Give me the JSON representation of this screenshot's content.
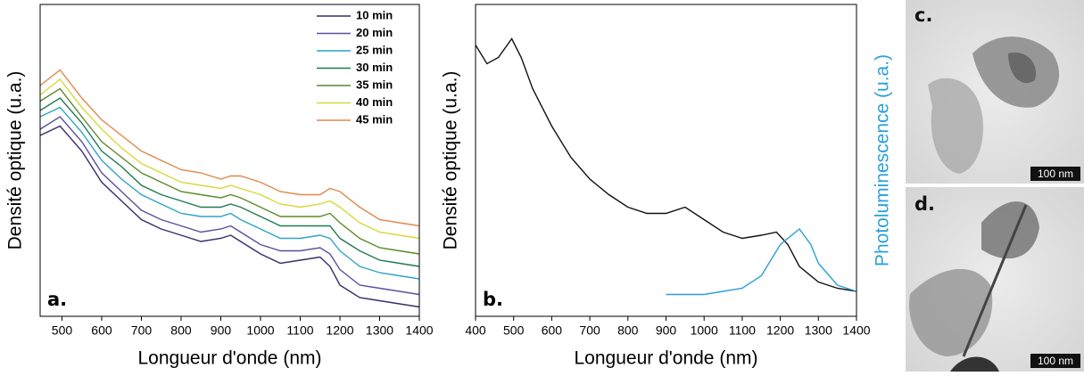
{
  "chart_data": [
    {
      "type": "line",
      "label": "a.",
      "xlabel": "Longueur d'onde (nm)",
      "ylabel": "Densité optique (u.a.)",
      "xlim": [
        445,
        1400
      ],
      "xticks": [
        500,
        600,
        700,
        800,
        900,
        1000,
        1100,
        1200,
        1300,
        1400
      ],
      "ylim": [
        0,
        1
      ],
      "legend": "upper right",
      "x": [
        445,
        495,
        550,
        600,
        650,
        700,
        750,
        800,
        850,
        900,
        925,
        950,
        1000,
        1050,
        1100,
        1150,
        1175,
        1200,
        1250,
        1300,
        1350,
        1400
      ],
      "series": [
        {
          "name": "10 min",
          "color": "#3b2a6b",
          "values": [
            0.58,
            0.61,
            0.53,
            0.43,
            0.37,
            0.31,
            0.28,
            0.26,
            0.24,
            0.25,
            0.26,
            0.24,
            0.2,
            0.17,
            0.18,
            0.19,
            0.16,
            0.1,
            0.06,
            0.05,
            0.04,
            0.03
          ]
        },
        {
          "name": "20 min",
          "color": "#5b4f9e",
          "values": [
            0.6,
            0.64,
            0.56,
            0.46,
            0.4,
            0.34,
            0.31,
            0.29,
            0.27,
            0.28,
            0.29,
            0.27,
            0.23,
            0.21,
            0.21,
            0.22,
            0.2,
            0.15,
            0.1,
            0.09,
            0.08,
            0.07
          ]
        },
        {
          "name": "25 min",
          "color": "#2fa3c7",
          "values": [
            0.64,
            0.67,
            0.59,
            0.5,
            0.44,
            0.39,
            0.36,
            0.33,
            0.32,
            0.32,
            0.33,
            0.31,
            0.28,
            0.25,
            0.25,
            0.26,
            0.25,
            0.21,
            0.16,
            0.14,
            0.13,
            0.12
          ]
        },
        {
          "name": "30 min",
          "color": "#1f7a4f",
          "values": [
            0.66,
            0.7,
            0.62,
            0.53,
            0.48,
            0.42,
            0.39,
            0.37,
            0.35,
            0.35,
            0.36,
            0.35,
            0.32,
            0.29,
            0.29,
            0.29,
            0.29,
            0.25,
            0.21,
            0.18,
            0.17,
            0.16
          ]
        },
        {
          "name": "35 min",
          "color": "#5a8a2a",
          "values": [
            0.69,
            0.73,
            0.64,
            0.56,
            0.51,
            0.46,
            0.43,
            0.4,
            0.39,
            0.38,
            0.39,
            0.38,
            0.35,
            0.32,
            0.32,
            0.32,
            0.33,
            0.3,
            0.25,
            0.22,
            0.21,
            0.2
          ]
        },
        {
          "name": "40 min",
          "color": "#d8d83a",
          "values": [
            0.71,
            0.76,
            0.67,
            0.6,
            0.54,
            0.49,
            0.46,
            0.43,
            0.42,
            0.41,
            0.42,
            0.41,
            0.39,
            0.36,
            0.35,
            0.36,
            0.37,
            0.35,
            0.3,
            0.27,
            0.26,
            0.25
          ]
        },
        {
          "name": "45 min",
          "color": "#e0884a",
          "values": [
            0.74,
            0.79,
            0.7,
            0.63,
            0.58,
            0.53,
            0.5,
            0.47,
            0.46,
            0.44,
            0.45,
            0.45,
            0.43,
            0.4,
            0.39,
            0.39,
            0.41,
            0.4,
            0.35,
            0.31,
            0.3,
            0.29
          ]
        }
      ]
    },
    {
      "type": "line",
      "label": "b.",
      "xlabel": "Longueur d'onde (nm)",
      "ylabel": "Densité optique (u.a.)",
      "y2label": "Photoluminescence (u.a.)",
      "xlim": [
        400,
        1400
      ],
      "xticks": [
        400,
        500,
        600,
        700,
        800,
        900,
        1000,
        1100,
        1200,
        1300,
        1400
      ],
      "ylim": [
        0,
        1
      ],
      "y2lim": [
        0,
        1
      ],
      "series": [
        {
          "color": "#111111",
          "x": [
            400,
            430,
            460,
            495,
            520,
            550,
            600,
            650,
            700,
            750,
            800,
            850,
            900,
            950,
            1000,
            1050,
            1100,
            1150,
            1190,
            1220,
            1250,
            1300,
            1350,
            1400
          ],
          "values": [
            0.87,
            0.81,
            0.83,
            0.89,
            0.83,
            0.73,
            0.61,
            0.51,
            0.44,
            0.39,
            0.35,
            0.33,
            0.33,
            0.35,
            0.31,
            0.27,
            0.25,
            0.26,
            0.27,
            0.23,
            0.16,
            0.11,
            0.09,
            0.08
          ]
        },
        {
          "color": "#2aa0d8",
          "axis": "y2",
          "x": [
            900,
            1000,
            1100,
            1150,
            1200,
            1250,
            1280,
            1300,
            1350,
            1400
          ],
          "values": [
            0.07,
            0.07,
            0.09,
            0.13,
            0.23,
            0.28,
            0.23,
            0.17,
            0.1,
            0.08
          ]
        }
      ]
    }
  ],
  "images": [
    {
      "label": "c.",
      "scale": "100 nm"
    },
    {
      "label": "d.",
      "scale": "100 nm"
    }
  ]
}
